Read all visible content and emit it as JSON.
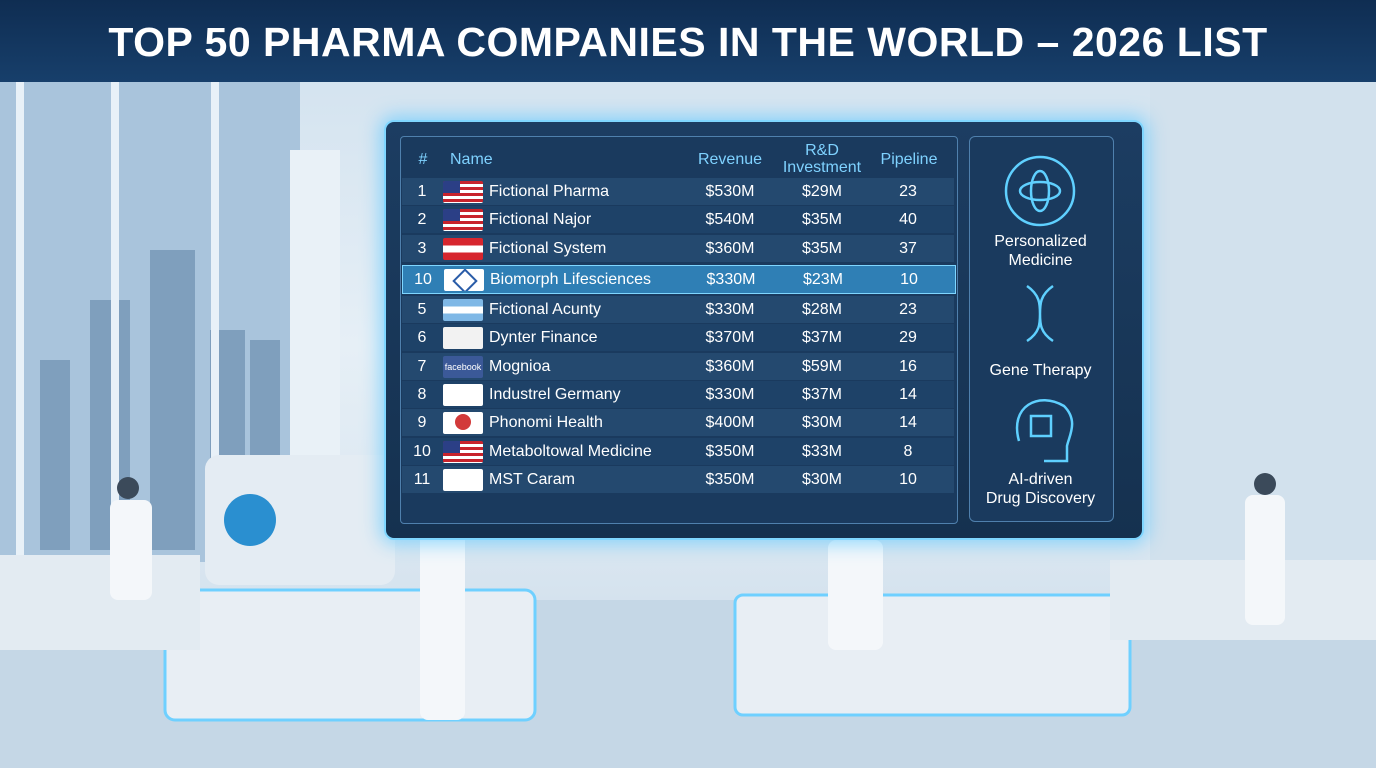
{
  "header": {
    "title": "TOP 50 PHARMA COMPANIES IN THE WORLD – 2026 LIST"
  },
  "table": {
    "columns": [
      "#",
      "Name",
      "Revenue",
      "R&D Investment",
      "Pipeline"
    ],
    "rows": [
      [
        "1",
        "Fictional Pharma",
        "$530M",
        "$29M",
        "23"
      ],
      [
        "2",
        "Fictional Najor",
        "$540M",
        "$35M",
        "40"
      ],
      [
        "3",
        "Fictional System",
        "$360M",
        "$35M",
        "37"
      ],
      [
        "10",
        "Biomorph Lifesciences",
        "$330M",
        "$23M",
        "10"
      ],
      [
        "5",
        "Fictional Acunty",
        "$330M",
        "$28M",
        "23"
      ],
      [
        "6",
        "Dynter Finance",
        "$370M",
        "$37M",
        "29"
      ],
      [
        "7",
        "Mognioa",
        "$360M",
        "$59M",
        "16"
      ],
      [
        "8",
        "Industrel Germany",
        "$330M",
        "$37M",
        "14"
      ],
      [
        "9",
        "Phonomi Health",
        "$400M",
        "$30M",
        "14"
      ],
      [
        "10",
        "Metaboltowal Medicine",
        "$350M",
        "$33M",
        "8"
      ],
      [
        "11",
        "MST Caram",
        "$350M",
        "$30M",
        "10"
      ]
    ],
    "logo_labels": [
      "facebook"
    ]
  },
  "side_panel": {
    "items": [
      {
        "lines": [
          "Personalized",
          "Medicine"
        ]
      },
      {
        "lines": [
          "Gene Therapy"
        ]
      },
      {
        "lines": [
          "AI-driven",
          "Drug Discovery"
        ]
      }
    ]
  }
}
